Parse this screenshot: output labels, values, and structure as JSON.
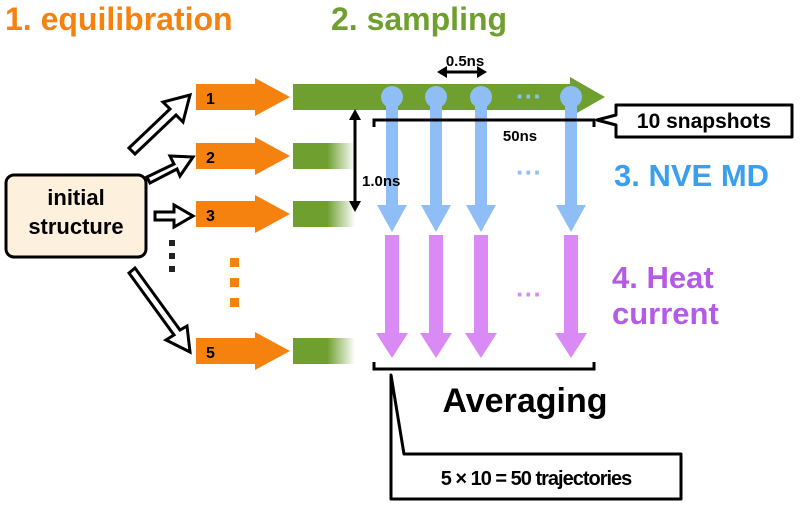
{
  "colors": {
    "orange": "#f5820f",
    "green": "#6f9f2f",
    "blue": "#8fbdf5",
    "blue_text": "#3aa0ee",
    "violet": "#d98af5",
    "violet_text": "#b45ae6",
    "box_fill": "#fdf0dc"
  },
  "headings": {
    "equilibration": "1. equilibration",
    "sampling": "2. sampling",
    "nve_line": "3. NVE MD",
    "heat_line1": "4. Heat",
    "heat_line2": "current"
  },
  "initial_box": {
    "line1": "initial",
    "line2": "structure"
  },
  "trajectories": {
    "labels": [
      "1",
      "2",
      "3",
      "5"
    ]
  },
  "annotations": {
    "interval": "0.5ns",
    "snapshots": "10 snapshots",
    "duration": "50ns",
    "nve_time": "1.0ns",
    "averaging": "Averaging",
    "total": "5 × 10 = 50 trajectories",
    "ellipsis": "···"
  }
}
